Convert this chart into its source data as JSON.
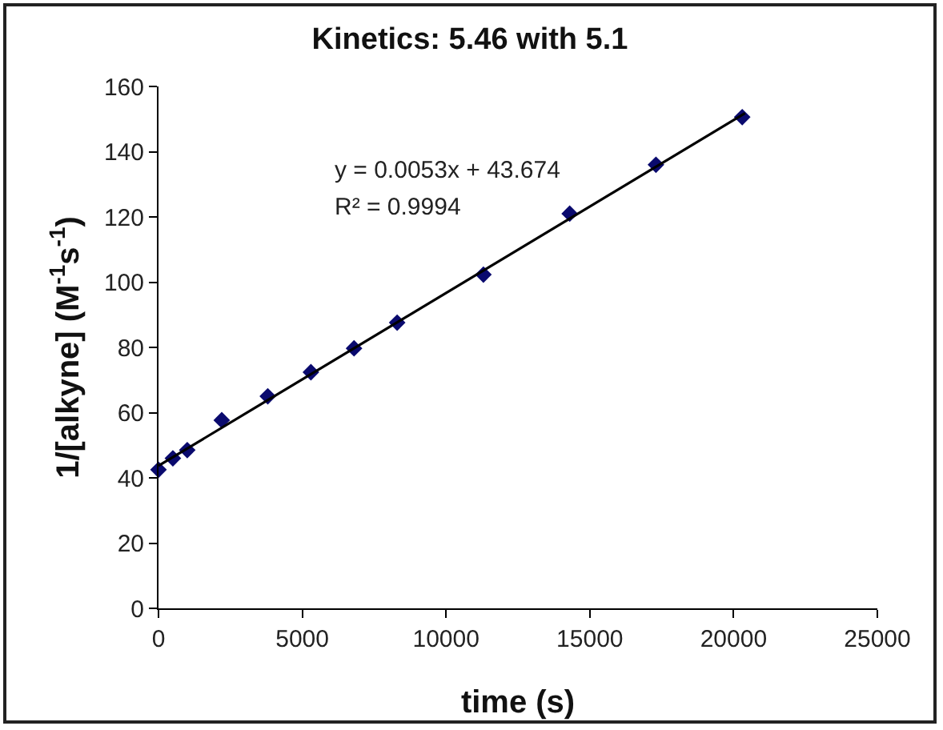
{
  "chart_data": {
    "type": "scatter",
    "title": "Kinetics: 5.46 with 5.1",
    "xlabel": "time (s)",
    "ylabel": "1/[alkyne] (M$^{-1}$s$^{-1}$)",
    "annotations": [
      "y = 0.0053x + 43.674",
      "R² = 0.9994"
    ],
    "series": [
      {
        "type": "scatter",
        "color": "#0a0a6e",
        "marker": "diamond",
        "x": [
          0,
          500,
          1000,
          2200,
          3800,
          5300,
          6800,
          8300,
          11300,
          14300,
          17300,
          20300
        ],
        "values": [
          42.5,
          46,
          48.5,
          57.7,
          65,
          72.4,
          79.7,
          87.6,
          102.3,
          121,
          136,
          150.6
        ]
      },
      {
        "type": "line",
        "color": "#000000",
        "marker": "none",
        "x": [
          0,
          20400
        ],
        "values": [
          43.7,
          151.8
        ]
      }
    ],
    "xlim": [
      0,
      25000
    ],
    "xticks": [
      0,
      5000,
      10000,
      15000,
      20000,
      25000
    ],
    "ylim": [
      0,
      160
    ],
    "yticks": [
      0,
      20,
      40,
      60,
      80,
      100,
      120,
      140,
      160
    ],
    "grid": false,
    "legend": false
  }
}
